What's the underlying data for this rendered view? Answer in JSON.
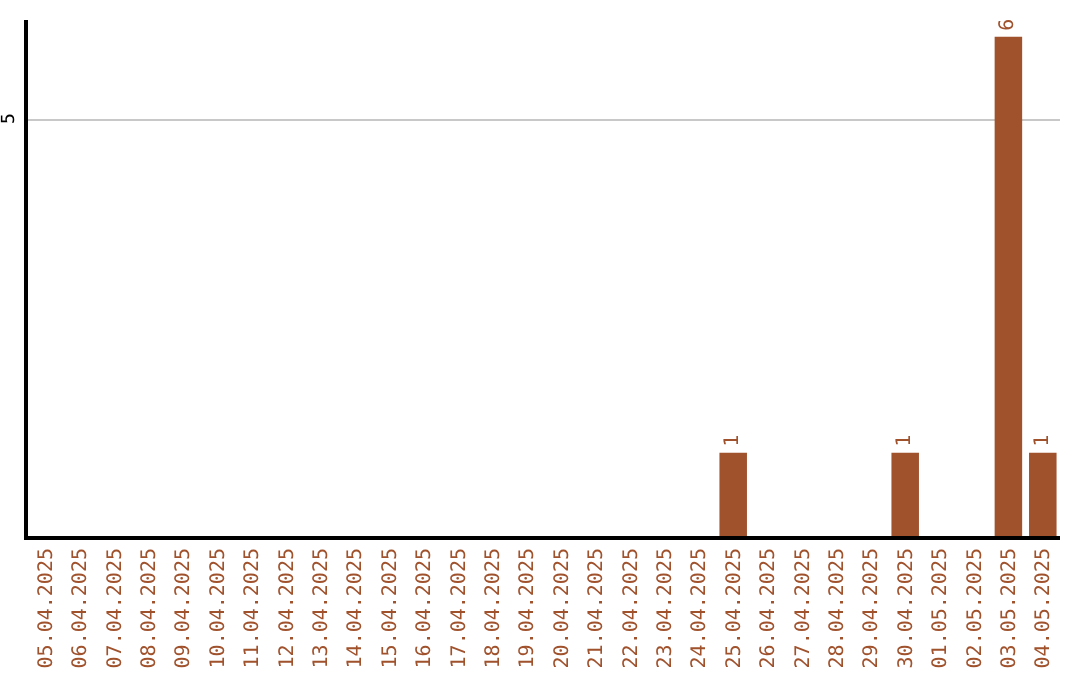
{
  "chart_data": {
    "type": "bar",
    "categories": [
      "05.04.2025",
      "06.04.2025",
      "07.04.2025",
      "08.04.2025",
      "09.04.2025",
      "10.04.2025",
      "11.04.2025",
      "12.04.2025",
      "13.04.2025",
      "14.04.2025",
      "15.04.2025",
      "16.04.2025",
      "17.04.2025",
      "18.04.2025",
      "19.04.2025",
      "20.04.2025",
      "21.04.2025",
      "22.04.2025",
      "23.04.2025",
      "24.04.2025",
      "25.04.2025",
      "26.04.2025",
      "27.04.2025",
      "28.04.2025",
      "29.04.2025",
      "30.04.2025",
      "01.05.2025",
      "02.05.2025",
      "03.05.2025",
      "04.05.2025"
    ],
    "values": [
      null,
      null,
      null,
      null,
      null,
      null,
      null,
      null,
      null,
      null,
      null,
      null,
      null,
      null,
      null,
      null,
      null,
      null,
      null,
      null,
      1,
      null,
      null,
      null,
      null,
      1,
      null,
      null,
      6,
      1
    ],
    "value_labels": [
      null,
      null,
      null,
      null,
      null,
      null,
      null,
      null,
      null,
      null,
      null,
      null,
      null,
      null,
      null,
      null,
      null,
      null,
      null,
      null,
      "1",
      null,
      null,
      null,
      null,
      "1",
      null,
      null,
      "6",
      "1"
    ],
    "color": "#a0522d",
    "ylim": [
      0,
      6.2
    ],
    "ref_lines": [
      {
        "axis": "y",
        "value": 5,
        "label": "5",
        "color": "#c8c8c8"
      }
    ]
  }
}
